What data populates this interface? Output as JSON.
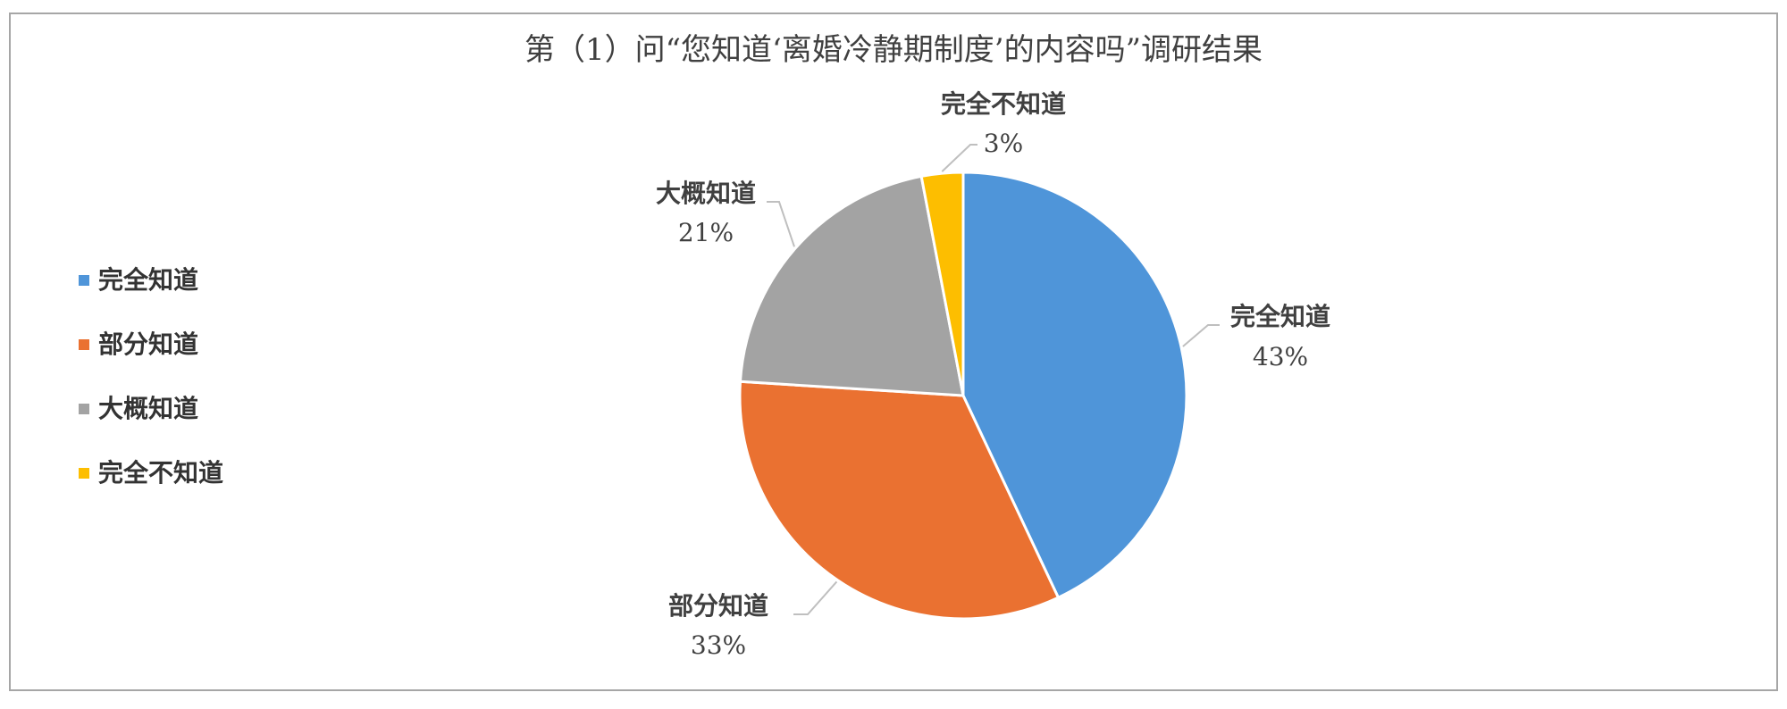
{
  "chart_data": {
    "type": "pie",
    "title": "第（1）问“您知道‘离婚冷静期制度’的内容吗”调研结果",
    "categories": [
      "完全知道",
      "部分知道",
      "大概知道",
      "完全不知道"
    ],
    "values": [
      43,
      33,
      21,
      3
    ],
    "data_labels": [
      {
        "name": "完全知道",
        "value": "43%"
      },
      {
        "name": "部分知道",
        "value": "33%"
      },
      {
        "name": "大概知道",
        "value": "21%"
      },
      {
        "name": "完全不知道",
        "value": "3%"
      }
    ],
    "colors": [
      "#4f95d9",
      "#ea7131",
      "#a3a3a3",
      "#fdbe00"
    ],
    "legend_position": "left",
    "start_angle": "12 o'clock, clockwise"
  }
}
